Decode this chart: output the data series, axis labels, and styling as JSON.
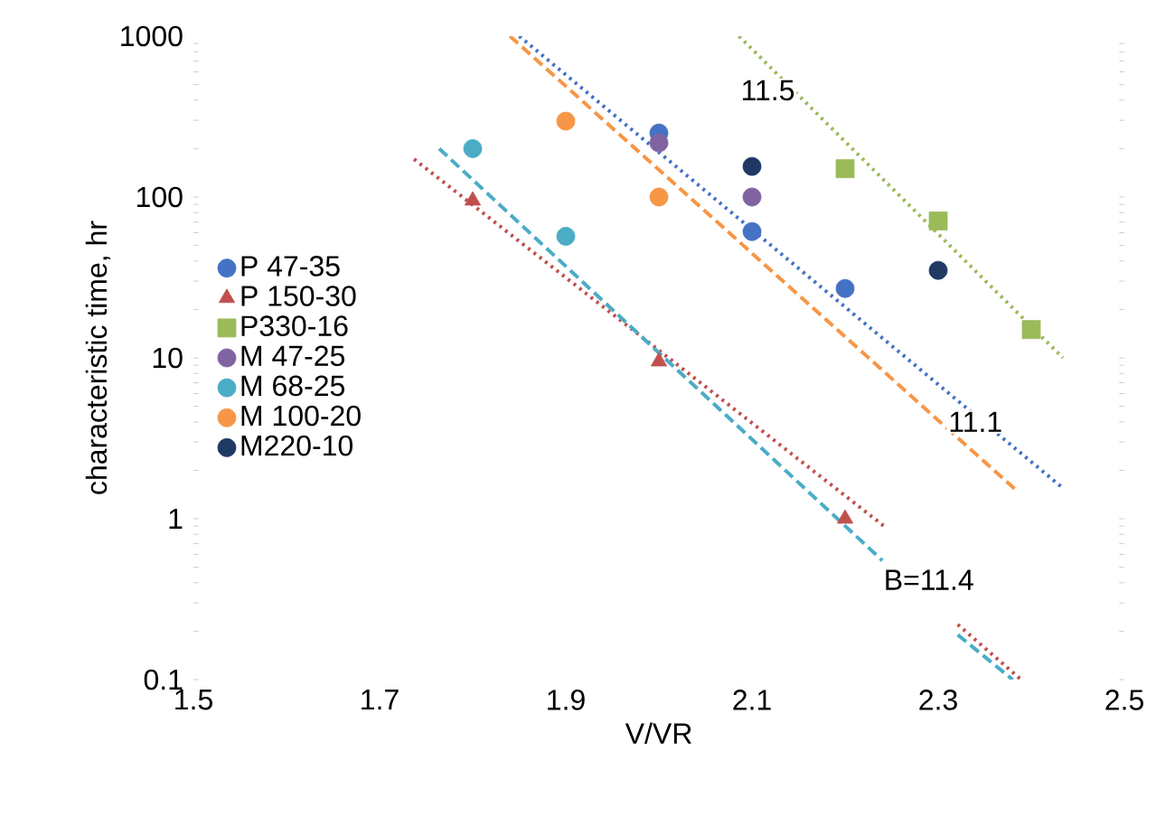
{
  "chart_data": {
    "type": "scatter",
    "xlabel": "V/VR",
    "ylabel": "characteristic time, hr",
    "log": "y",
    "xlim": [
      1.5,
      2.5
    ],
    "ylim": [
      0.1,
      1000
    ],
    "xticks": [
      1.5,
      1.7,
      1.9,
      2.1,
      2.3,
      2.5
    ],
    "yticks": [
      0.1,
      1,
      10,
      100,
      1000
    ],
    "legend": "left",
    "series": [
      {
        "name": "P 47-35",
        "marker": "circle",
        "color": "#4472c4",
        "x": [
          2.0,
          2.1,
          2.2
        ],
        "values": [
          250,
          61,
          27
        ]
      },
      {
        "name": "P 150-30",
        "marker": "triangle",
        "color": "#c0504d",
        "x": [
          1.8,
          2.0,
          2.2
        ],
        "values": [
          95,
          9.5,
          1
        ]
      },
      {
        "name": "P330-16",
        "marker": "square",
        "color": "#9bbb59",
        "x": [
          2.2,
          2.3,
          2.4
        ],
        "values": [
          150,
          71,
          15
        ]
      },
      {
        "name": "M 47-25",
        "marker": "circle",
        "color": "#8064a2",
        "x": [
          2.0,
          2.1
        ],
        "values": [
          217,
          100
        ]
      },
      {
        "name": "M 68-25",
        "marker": "circle",
        "color": "#4bacc6",
        "x": [
          1.8,
          1.9
        ],
        "values": [
          200,
          57
        ]
      },
      {
        "name": "M 100-20",
        "marker": "circle",
        "color": "#f79646",
        "x": [
          1.9,
          2.0
        ],
        "values": [
          296,
          100
        ]
      },
      {
        "name": "M220-10",
        "marker": "circle",
        "color": "#1f3864",
        "x": [
          2.1,
          2.3
        ],
        "values": [
          155,
          35
        ]
      },
      {
        "type": "line",
        "line_style": "dotted",
        "color": "#4472c4",
        "x": [
          1.85,
          2.434
        ],
        "values": [
          1000,
          1.55
        ]
      },
      {
        "type": "line",
        "line_style": "dotted",
        "color": "#9bbb59",
        "x": [
          2.086,
          2.434
        ],
        "values": [
          1000,
          10
        ]
      },
      {
        "type": "line",
        "line_style": "dashed",
        "color": "#f79646",
        "x": [
          1.84,
          2.384
        ],
        "values": [
          1000,
          1.5
        ]
      },
      {
        "type": "line",
        "line_style": "dotted",
        "color": "#c0504d",
        "x": [
          1.737,
          2.244,
          2.28,
          2.321,
          2.389
        ],
        "values": [
          172,
          0.88,
          null,
          0.22,
          0.1
        ]
      },
      {
        "type": "line",
        "line_style": "dashed",
        "color": "#4bacc6",
        "x": [
          1.764,
          2.24,
          2.28,
          2.321,
          2.38
        ],
        "values": [
          200,
          0.55,
          null,
          0.19,
          0.1
        ]
      }
    ],
    "annotations": [
      {
        "text": "11.5",
        "x": 2.117,
        "y": 460
      },
      {
        "text": "11.1",
        "x": 2.34,
        "y": 4.0
      },
      "B=11.4"
    ]
  }
}
